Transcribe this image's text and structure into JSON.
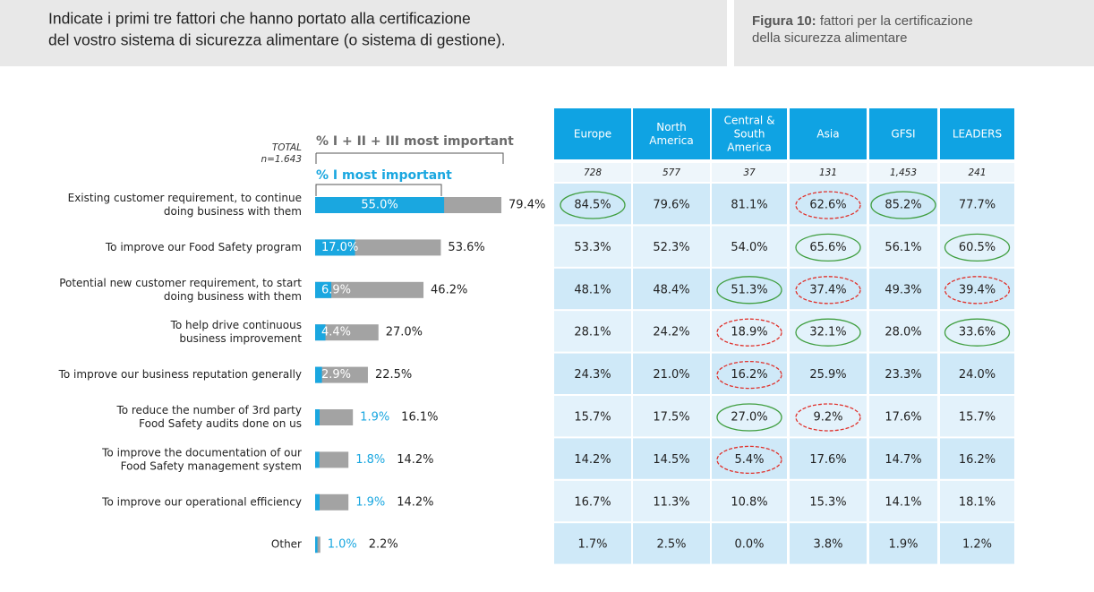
{
  "header": {
    "question": [
      "Indicate i primi tre fattori che hanno portato alla certificazione",
      "del vostro sistema di sicurezza alimentare (o sistema di gestione)."
    ],
    "figure_label": "Figura 10:",
    "figure_caption": [
      "fattori per la certificazione",
      "della sicurezza alimentare"
    ]
  },
  "chart_data": {
    "type": "bar",
    "orientation": "horizontal",
    "total_label": "TOTAL",
    "n_label": "n=1.643",
    "categories": [
      [
        "Existing customer requirement, to continue",
        "doing business with them"
      ],
      [
        "To improve our Food Safety program"
      ],
      [
        "Potential new customer requirement, to start",
        "doing business with them"
      ],
      [
        "To help drive continuous",
        "business improvement"
      ],
      [
        "To improve our business reputation generally"
      ],
      [
        "To reduce the number of 3rd party",
        "Food Safety audits done on us"
      ],
      [
        "To improve the documentation of our",
        "Food Safety management system"
      ],
      [
        "To improve our operational efficiency"
      ],
      [
        "Other"
      ]
    ],
    "series": [
      {
        "name": "% I + II + III most important",
        "color": "#a3a3a3",
        "values": [
          79.4,
          53.6,
          46.2,
          27.0,
          22.5,
          16.1,
          14.2,
          14.2,
          2.2
        ],
        "value_labels": [
          "79.4%",
          "53.6%",
          "46.2%",
          "27.0%",
          "22.5%",
          "16.1%",
          "14.2%",
          "14.2%",
          "2.2%"
        ]
      },
      {
        "name": "% I most important",
        "color": "#1aa7e0",
        "values": [
          55.0,
          17.0,
          6.9,
          4.4,
          2.9,
          1.9,
          1.8,
          1.9,
          1.0
        ],
        "value_labels": [
          "55.0%",
          "17.0%",
          "6.9%",
          "4.4%",
          "2.9%",
          "1.9%",
          "1.8%",
          "1.9%",
          "1.0%"
        ]
      }
    ],
    "xlim": [
      0,
      100
    ]
  },
  "table": {
    "columns": [
      [
        "Europe"
      ],
      [
        "North",
        "America"
      ],
      [
        "Central &",
        "South",
        "America"
      ],
      [
        "Asia"
      ],
      [
        "GFSI"
      ],
      [
        "LEADERS"
      ]
    ],
    "n": [
      "728",
      "577",
      "37",
      "131",
      "1,453",
      "241"
    ],
    "rows": [
      [
        "84.5%",
        "79.6%",
        "81.1%",
        "62.6%",
        "85.2%",
        "77.7%"
      ],
      [
        "53.3%",
        "52.3%",
        "54.0%",
        "65.6%",
        "56.1%",
        "60.5%"
      ],
      [
        "48.1%",
        "48.4%",
        "51.3%",
        "37.4%",
        "49.3%",
        "39.4%"
      ],
      [
        "28.1%",
        "24.2%",
        "18.9%",
        "32.1%",
        "28.0%",
        "33.6%"
      ],
      [
        "24.3%",
        "21.0%",
        "16.2%",
        "25.9%",
        "23.3%",
        "24.0%"
      ],
      [
        "15.7%",
        "17.5%",
        "27.0%",
        "9.2%",
        "17.6%",
        "15.7%"
      ],
      [
        "14.2%",
        "14.5%",
        "5.4%",
        "17.6%",
        "14.7%",
        "16.2%"
      ],
      [
        "16.7%",
        "11.3%",
        "10.8%",
        "15.3%",
        "14.1%",
        "18.1%"
      ],
      [
        "1.7%",
        "2.5%",
        "0.0%",
        "3.8%",
        "1.9%",
        "1.2%"
      ]
    ],
    "highlights": [
      [
        "#3f9e3f",
        null,
        null,
        "#e0302a",
        "#3f9e3f",
        null
      ],
      [
        null,
        null,
        null,
        "#3f9e3f",
        null,
        "#3f9e3f"
      ],
      [
        null,
        null,
        "#3f9e3f",
        "#e0302a",
        null,
        "#e0302a"
      ],
      [
        null,
        null,
        "#e0302a",
        "#3f9e3f",
        null,
        "#3f9e3f"
      ],
      [
        null,
        null,
        "#e0302a",
        null,
        null,
        null
      ],
      [
        null,
        null,
        "#3f9e3f",
        "#e0302a",
        null,
        null
      ],
      [
        null,
        null,
        "#e0302a",
        null,
        null,
        null
      ],
      [
        null,
        null,
        null,
        null,
        null,
        null
      ],
      [
        null,
        null,
        null,
        null,
        null,
        null
      ]
    ],
    "dashed_color": "#e0302a",
    "header_color": "#0fa3e3",
    "row_colors": [
      "#cfe9f8",
      "#e3f2fb"
    ]
  }
}
